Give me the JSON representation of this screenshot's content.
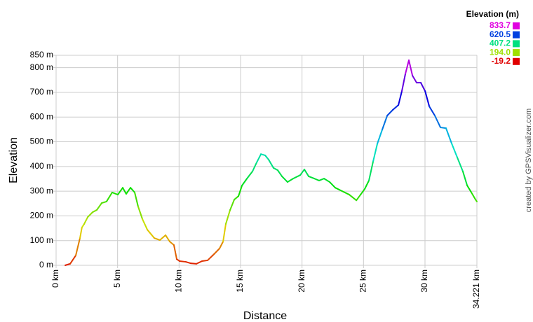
{
  "chart_data": {
    "type": "line",
    "x_label": "Distance",
    "y_label": "Elevation",
    "legend_title": "Elevation (m)",
    "credit": "created by GPSVisualizer.com",
    "colorscale": [
      {
        "value": 833.7,
        "label": "833.7",
        "color": "#e000e0"
      },
      {
        "value": 620.5,
        "label": "620.5",
        "color": "#0040e0"
      },
      {
        "value": 407.2,
        "label": "407.2",
        "color": "#00e080"
      },
      {
        "value": 194.0,
        "label": "194.0",
        "color": "#a0e000"
      },
      {
        "value": -19.2,
        "label": "-19.2",
        "color": "#e00000"
      }
    ],
    "xlim": [
      0,
      34.221
    ],
    "ylim": [
      0,
      850
    ],
    "xticks": [
      {
        "value": 0,
        "label": "0 km"
      },
      {
        "value": 5,
        "label": "5 km"
      },
      {
        "value": 10,
        "label": "10 km"
      },
      {
        "value": 15,
        "label": "15 km"
      },
      {
        "value": 20,
        "label": "20 km"
      },
      {
        "value": 25,
        "label": "25 km"
      },
      {
        "value": 30,
        "label": "30 km"
      },
      {
        "value": 34.221,
        "label": "34.221 km"
      }
    ],
    "yticks": [
      {
        "value": 0,
        "label": "0 m"
      },
      {
        "value": 100,
        "label": "100 m"
      },
      {
        "value": 200,
        "label": "200 m"
      },
      {
        "value": 300,
        "label": "300 m"
      },
      {
        "value": 400,
        "label": "400 m"
      },
      {
        "value": 500,
        "label": "500 m"
      },
      {
        "value": 600,
        "label": "600 m"
      },
      {
        "value": 700,
        "label": "700 m"
      },
      {
        "value": 800,
        "label": "800 m"
      },
      {
        "value": 850,
        "label": "850 m"
      }
    ],
    "grid": true,
    "x": [
      0.74,
      1.14,
      1.6,
      1.94,
      2.1,
      2.28,
      2.57,
      2.97,
      3.31,
      3.71,
      4.1,
      4.56,
      5.02,
      5.42,
      5.7,
      6.05,
      6.39,
      6.67,
      7.02,
      7.42,
      7.99,
      8.44,
      8.9,
      9.24,
      9.58,
      9.81,
      10.04,
      10.55,
      10.95,
      11.41,
      11.87,
      12.32,
      12.84,
      13.29,
      13.58,
      13.8,
      14.15,
      14.49,
      14.83,
      15.12,
      15.52,
      15.97,
      16.31,
      16.66,
      17.0,
      17.28,
      17.68,
      18.02,
      18.37,
      18.82,
      19.28,
      19.85,
      20.19,
      20.54,
      21.0,
      21.39,
      21.79,
      22.25,
      22.7,
      23.27,
      23.84,
      24.42,
      24.76,
      25.1,
      25.44,
      25.79,
      26.13,
      26.53,
      26.93,
      27.38,
      27.84,
      28.12,
      28.41,
      28.69,
      28.98,
      29.32,
      29.66,
      30.01,
      30.35,
      30.8,
      31.26,
      31.71,
      32.17,
      32.63,
      33.08,
      33.43,
      33.77,
      34.11,
      34.22
    ],
    "values": [
      0,
      6,
      40,
      110,
      153,
      167,
      195,
      215,
      224,
      252,
      258,
      295,
      286,
      314,
      289,
      314,
      295,
      238,
      187,
      144,
      110,
      102,
      122,
      96,
      82,
      25,
      17,
      14,
      8,
      6,
      17,
      20,
      45,
      68,
      96,
      167,
      224,
      266,
      280,
      323,
      351,
      380,
      416,
      450,
      445,
      428,
      394,
      385,
      360,
      337,
      351,
      365,
      388,
      360,
      351,
      343,
      351,
      337,
      314,
      300,
      286,
      263,
      286,
      309,
      343,
      422,
      493,
      550,
      606,
      629,
      649,
      705,
      776,
      830,
      768,
      739,
      739,
      705,
      643,
      606,
      558,
      555,
      493,
      436,
      380,
      323,
      295,
      266,
      258
    ]
  }
}
